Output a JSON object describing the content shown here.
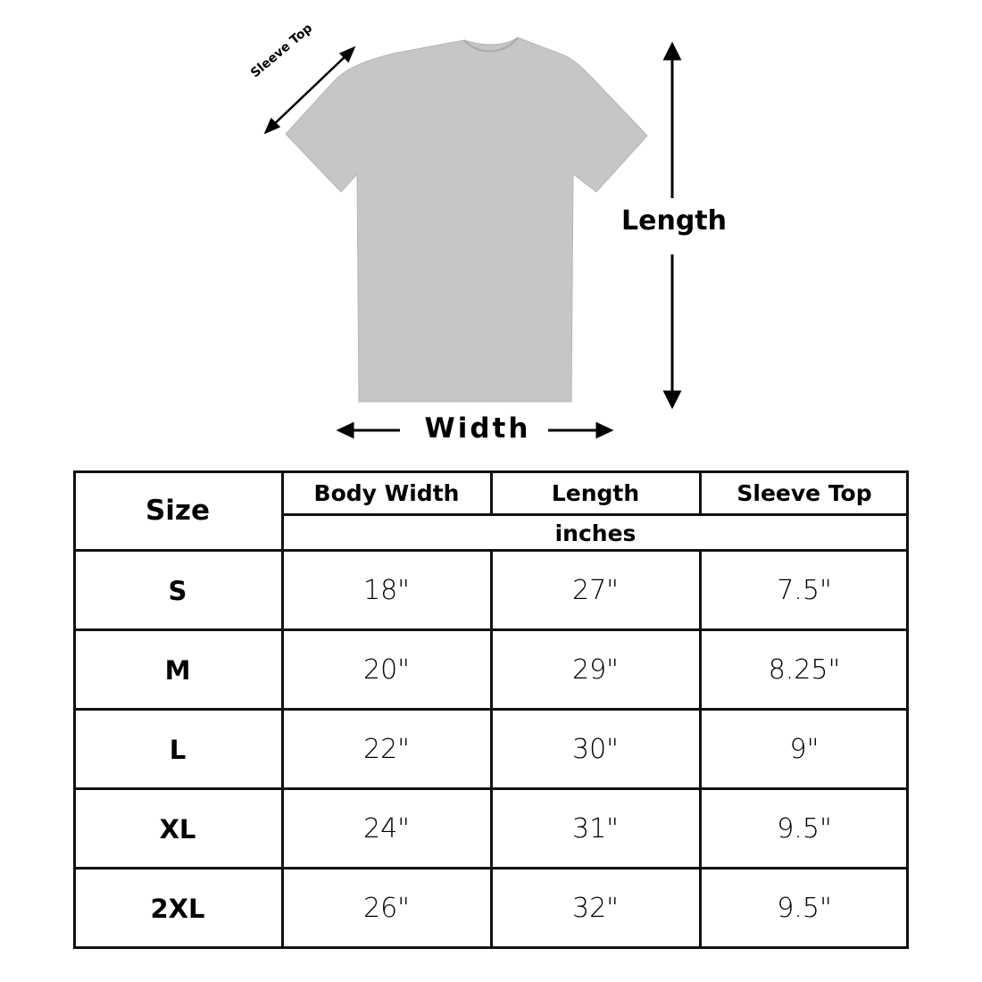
{
  "diagram": {
    "sleeve_label": "Sleeve Top",
    "length_label": "Length",
    "width_label": "Width",
    "shirt_color": "#c4c4c4"
  },
  "table": {
    "headers": {
      "size": "Size",
      "columns": [
        "Body Width",
        "Length",
        "Sleeve Top"
      ],
      "unit": "inches"
    },
    "rows": [
      {
        "size": "S",
        "values": [
          "18\"",
          "27\"",
          "7.5\""
        ]
      },
      {
        "size": "M",
        "values": [
          "20\"",
          "29\"",
          "8.25\""
        ]
      },
      {
        "size": "L",
        "values": [
          "22\"",
          "30\"",
          "9\""
        ]
      },
      {
        "size": "XL",
        "values": [
          "24\"",
          "31\"",
          "9.5\""
        ]
      },
      {
        "size": "2XL",
        "values": [
          "26\"",
          "32\"",
          "9.5\""
        ]
      }
    ]
  }
}
